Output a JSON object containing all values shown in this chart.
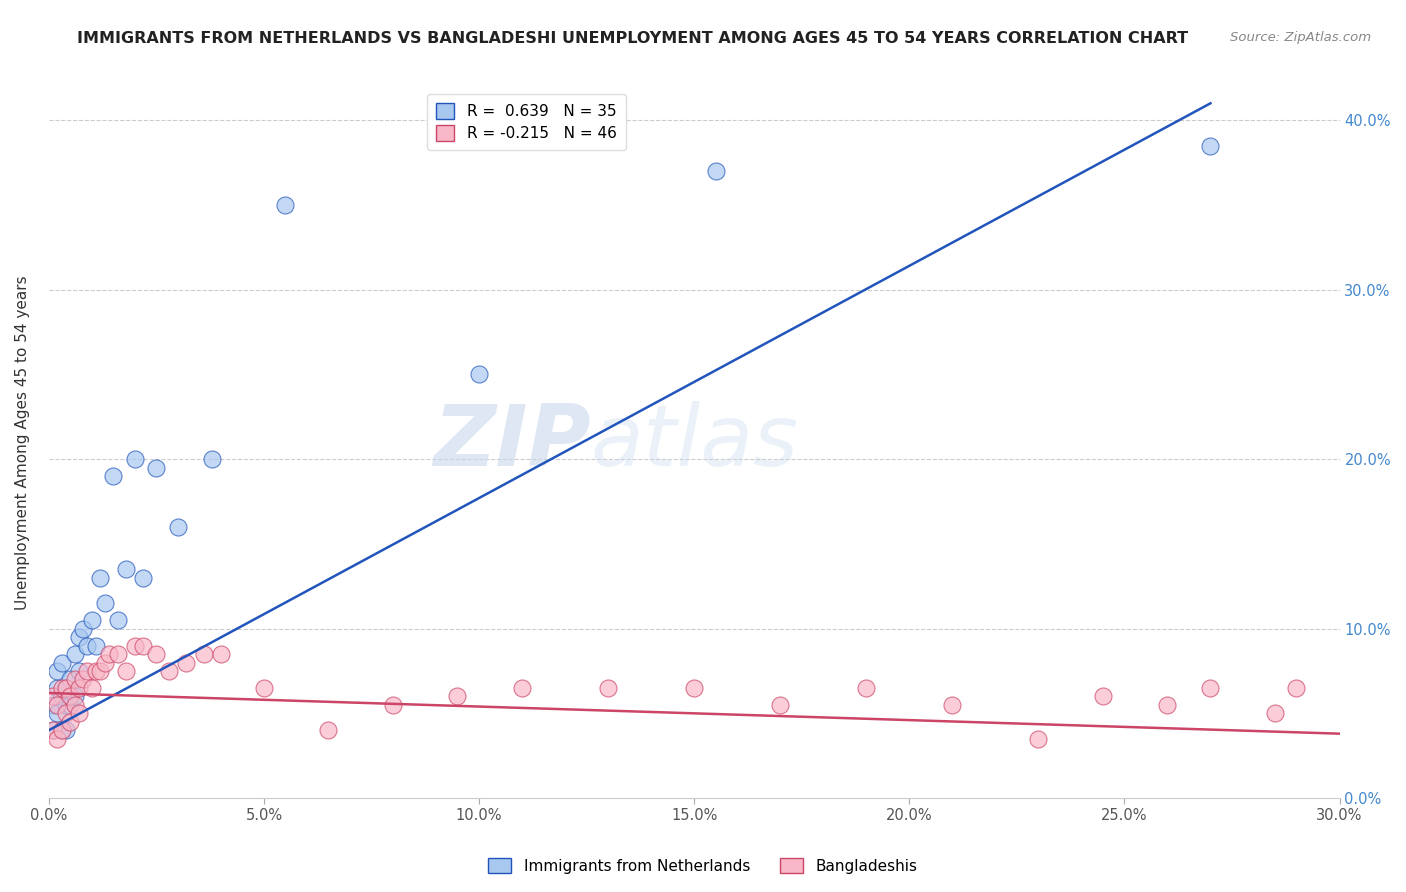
{
  "title": "IMMIGRANTS FROM NETHERLANDS VS BANGLADESHI UNEMPLOYMENT AMONG AGES 45 TO 54 YEARS CORRELATION CHART",
  "source": "Source: ZipAtlas.com",
  "ylabel": "Unemployment Among Ages 45 to 54 years",
  "xlim": [
    0,
    0.3
  ],
  "ylim": [
    0,
    0.42
  ],
  "blue_R": 0.639,
  "blue_N": 35,
  "pink_R": -0.215,
  "pink_N": 46,
  "blue_color": "#A8C8F0",
  "pink_color": "#F8B8C8",
  "blue_line_color": "#2255BB",
  "pink_line_color": "#CC4466",
  "watermark_zip": "ZIP",
  "watermark_atlas": "atlas",
  "blue_scatter_x": [
    0.001,
    0.001,
    0.002,
    0.002,
    0.002,
    0.003,
    0.003,
    0.003,
    0.004,
    0.004,
    0.004,
    0.005,
    0.005,
    0.006,
    0.006,
    0.007,
    0.007,
    0.008,
    0.009,
    0.01,
    0.011,
    0.012,
    0.013,
    0.015,
    0.016,
    0.018,
    0.02,
    0.022,
    0.025,
    0.03,
    0.038,
    0.055,
    0.1,
    0.155,
    0.27
  ],
  "blue_scatter_y": [
    0.04,
    0.055,
    0.05,
    0.065,
    0.075,
    0.04,
    0.06,
    0.08,
    0.04,
    0.055,
    0.065,
    0.055,
    0.07,
    0.06,
    0.085,
    0.095,
    0.075,
    0.1,
    0.09,
    0.105,
    0.09,
    0.13,
    0.115,
    0.19,
    0.105,
    0.135,
    0.2,
    0.13,
    0.195,
    0.16,
    0.2,
    0.35,
    0.25,
    0.37,
    0.385
  ],
  "pink_scatter_x": [
    0.001,
    0.001,
    0.002,
    0.002,
    0.003,
    0.003,
    0.004,
    0.004,
    0.005,
    0.005,
    0.006,
    0.006,
    0.007,
    0.007,
    0.008,
    0.009,
    0.01,
    0.011,
    0.012,
    0.013,
    0.014,
    0.016,
    0.018,
    0.02,
    0.022,
    0.025,
    0.028,
    0.032,
    0.036,
    0.04,
    0.05,
    0.065,
    0.08,
    0.095,
    0.11,
    0.13,
    0.15,
    0.17,
    0.19,
    0.21,
    0.23,
    0.245,
    0.26,
    0.27,
    0.285,
    0.29
  ],
  "pink_scatter_y": [
    0.04,
    0.06,
    0.035,
    0.055,
    0.04,
    0.065,
    0.05,
    0.065,
    0.045,
    0.06,
    0.055,
    0.07,
    0.05,
    0.065,
    0.07,
    0.075,
    0.065,
    0.075,
    0.075,
    0.08,
    0.085,
    0.085,
    0.075,
    0.09,
    0.09,
    0.085,
    0.075,
    0.08,
    0.085,
    0.085,
    0.065,
    0.04,
    0.055,
    0.06,
    0.065,
    0.065,
    0.065,
    0.055,
    0.065,
    0.055,
    0.035,
    0.06,
    0.055,
    0.065,
    0.05,
    0.065
  ],
  "blue_line_x": [
    0.0,
    0.27
  ],
  "blue_line_y": [
    0.04,
    0.41
  ],
  "pink_line_x": [
    0.0,
    0.3
  ],
  "pink_line_y": [
    0.062,
    0.038
  ]
}
